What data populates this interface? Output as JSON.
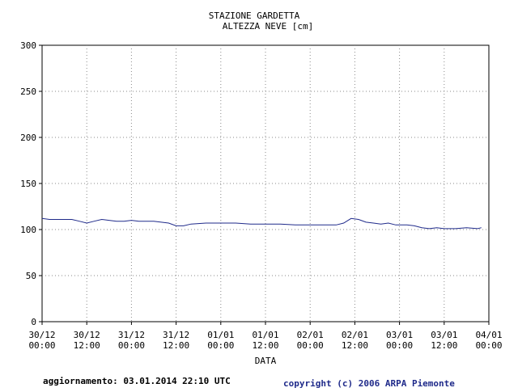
{
  "chart_data": {
    "type": "line",
    "title": "STAZIONE GARDETTA",
    "subtitle": "ALTEZZA NEVE [cm]",
    "xlabel": "DATA",
    "ylabel": "",
    "ylim": [
      0,
      300
    ],
    "y_ticks": [
      0,
      50,
      100,
      150,
      200,
      250,
      300
    ],
    "xlim": [
      "2013-12-30 00:00",
      "2014-01-04 00:00"
    ],
    "x_ticks": [
      {
        "date": "30/12",
        "time": "00:00"
      },
      {
        "date": "30/12",
        "time": "12:00"
      },
      {
        "date": "31/12",
        "time": "00:00"
      },
      {
        "date": "31/12",
        "time": "12:00"
      },
      {
        "date": "01/01",
        "time": "00:00"
      },
      {
        "date": "01/01",
        "time": "12:00"
      },
      {
        "date": "02/01",
        "time": "00:00"
      },
      {
        "date": "02/01",
        "time": "12:00"
      },
      {
        "date": "03/01",
        "time": "00:00"
      },
      {
        "date": "03/01",
        "time": "12:00"
      },
      {
        "date": "04/01",
        "time": "00:00"
      }
    ],
    "grid": true,
    "series": [
      {
        "color": "#1f2a8a",
        "x": [
          "2013-12-30 00:00",
          "2013-12-30 02:00",
          "2013-12-30 04:00",
          "2013-12-30 06:00",
          "2013-12-30 08:00",
          "2013-12-30 10:00",
          "2013-12-30 12:00",
          "2013-12-30 14:00",
          "2013-12-30 16:00",
          "2013-12-30 18:00",
          "2013-12-30 20:00",
          "2013-12-30 22:00",
          "2013-12-31 00:00",
          "2013-12-31 02:00",
          "2013-12-31 04:00",
          "2013-12-31 06:00",
          "2013-12-31 08:00",
          "2013-12-31 10:00",
          "2013-12-31 12:00",
          "2013-12-31 14:00",
          "2013-12-31 16:00",
          "2013-12-31 20:00",
          "2014-01-01 00:00",
          "2014-01-01 04:00",
          "2014-01-01 08:00",
          "2014-01-01 12:00",
          "2014-01-01 16:00",
          "2014-01-01 20:00",
          "2014-01-02 00:00",
          "2014-01-02 04:00",
          "2014-01-02 07:00",
          "2014-01-02 09:00",
          "2014-01-02 11:00",
          "2014-01-02 13:00",
          "2014-01-02 15:00",
          "2014-01-02 17:00",
          "2014-01-02 19:00",
          "2014-01-02 21:00",
          "2014-01-02 23:00",
          "2014-01-03 02:00",
          "2014-01-03 04:00",
          "2014-01-03 06:00",
          "2014-01-03 08:00",
          "2014-01-03 10:00",
          "2014-01-03 12:00",
          "2014-01-03 15:00",
          "2014-01-03 18:00",
          "2014-01-03 21:00",
          "2014-01-03 22:00"
        ],
        "values": [
          112,
          111,
          111,
          111,
          111,
          109,
          107,
          109,
          111,
          110,
          109,
          109,
          110,
          109,
          109,
          109,
          108,
          107,
          104,
          104,
          106,
          107,
          107,
          107,
          106,
          106,
          106,
          105,
          105,
          105,
          105,
          107,
          112,
          111,
          108,
          107,
          106,
          107,
          105,
          105,
          104,
          102,
          101,
          102,
          101,
          101,
          102,
          101,
          102
        ]
      }
    ]
  },
  "footer": {
    "updated": "aggiornamento: 03.01.2014 22:10 UTC",
    "copyright": "copyright (c) 2006 ARPA Piemonte"
  }
}
